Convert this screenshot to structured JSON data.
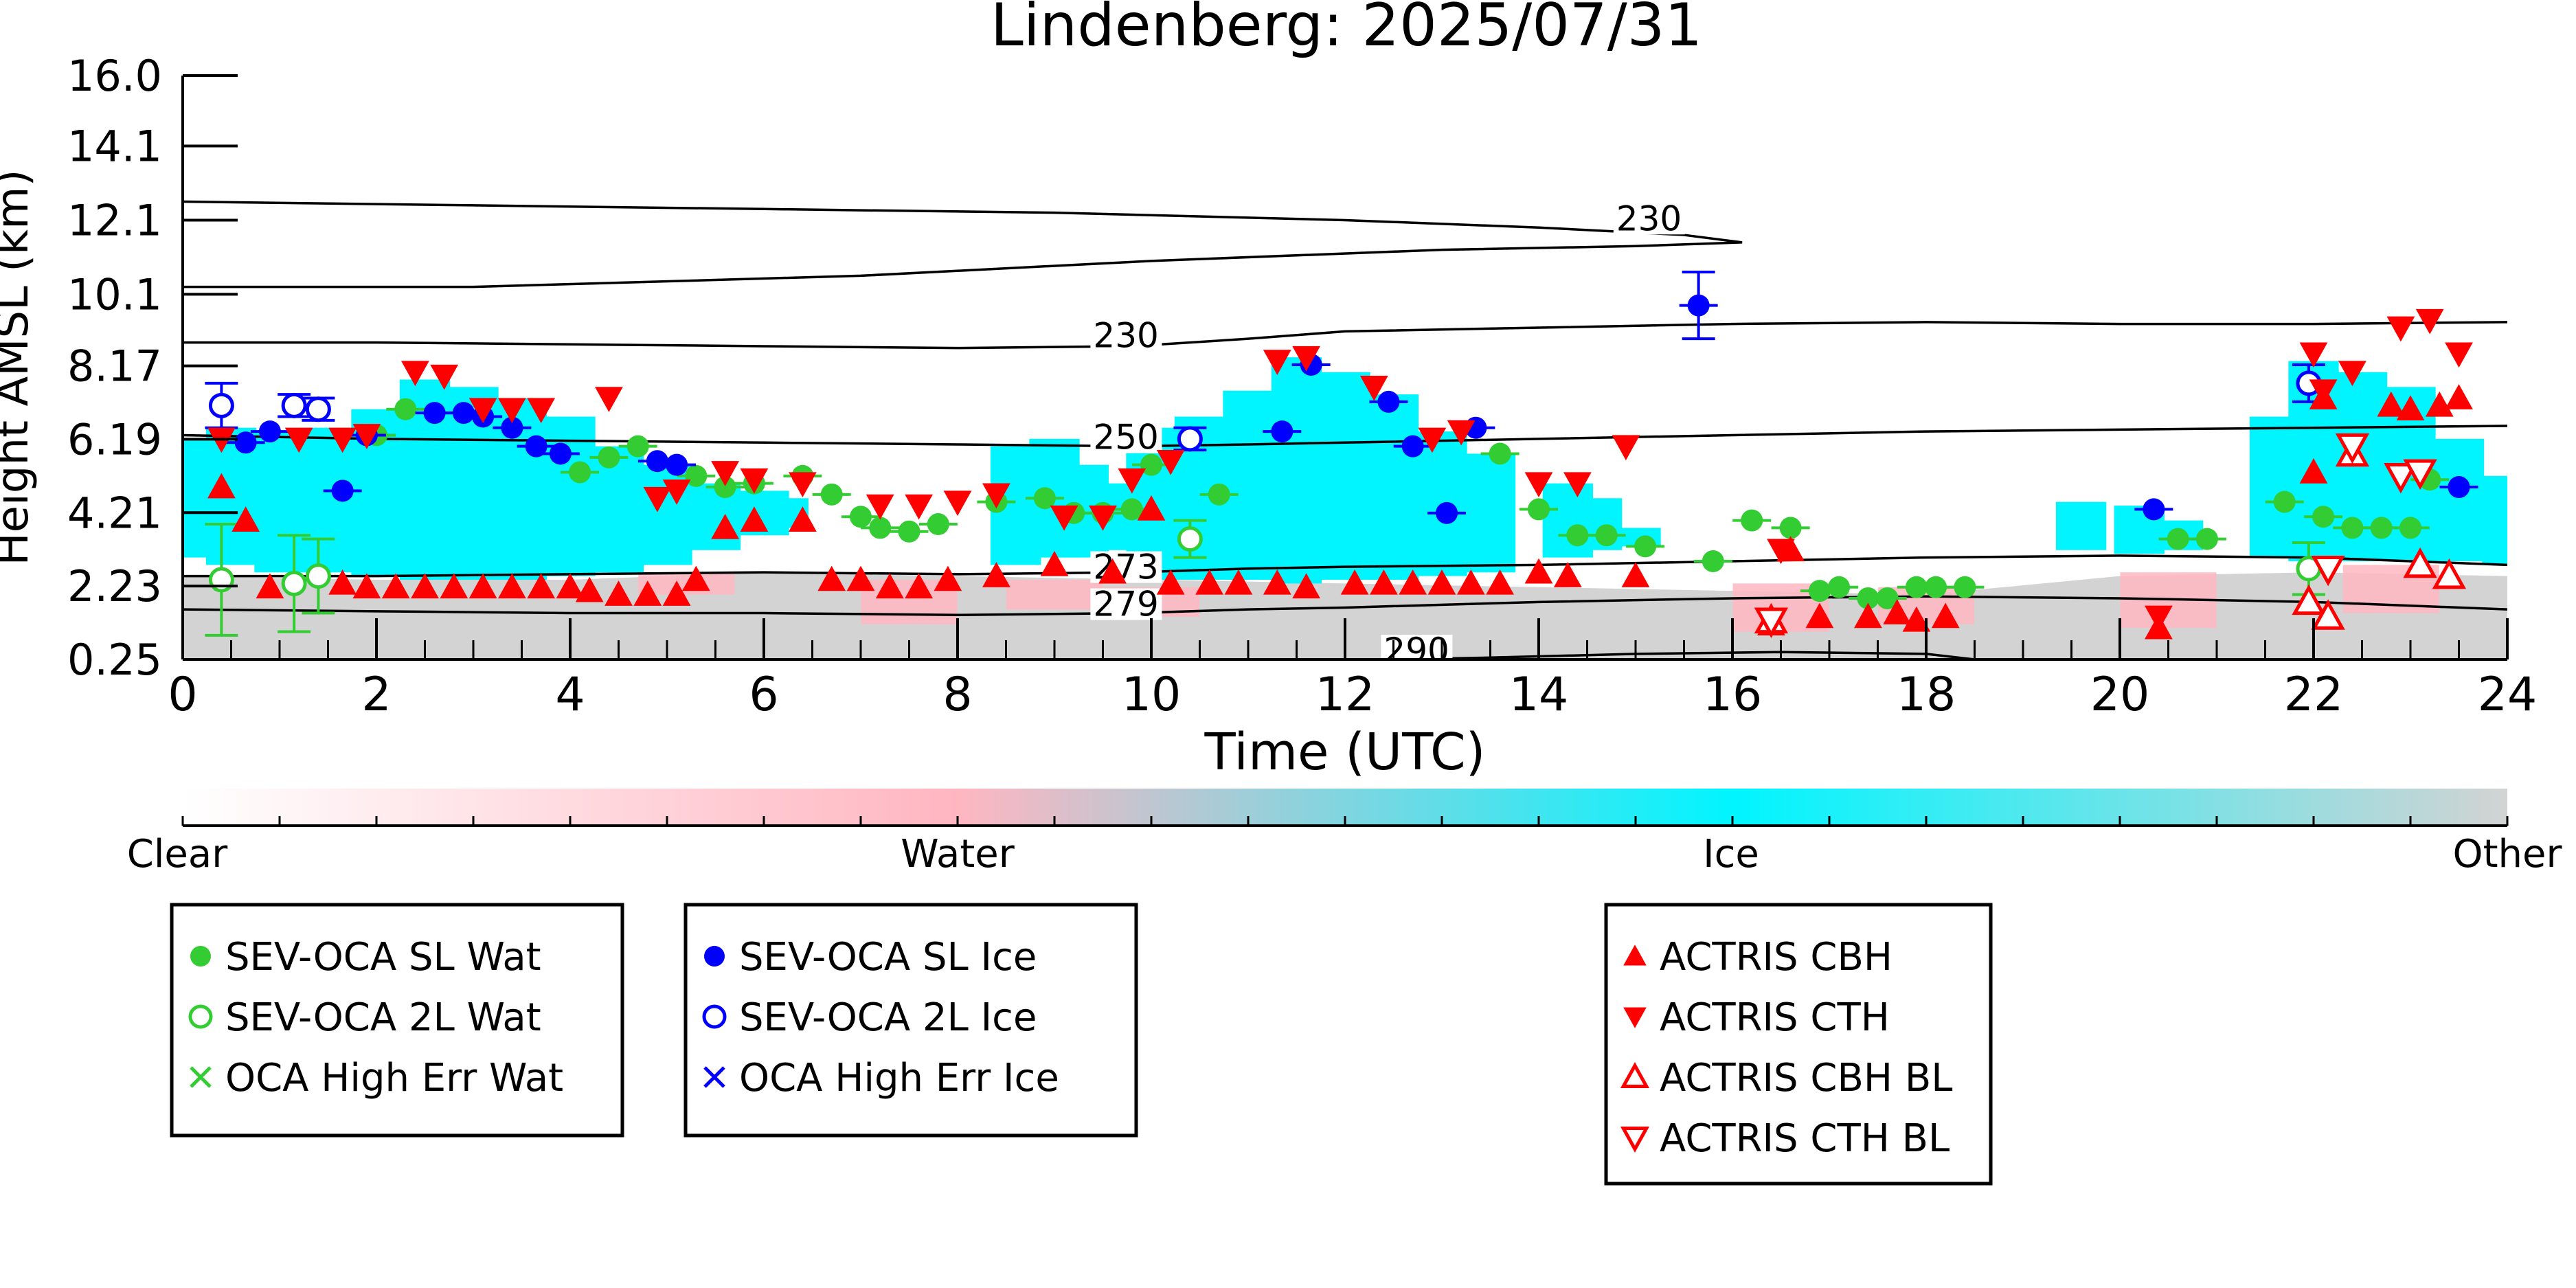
{
  "chart_data": {
    "type": "scatter",
    "title": "Lindenberg: 2025/07/31",
    "xlabel": "Time (UTC)",
    "ylabel": "Height AMSL (km)",
    "xlim": [
      0,
      24
    ],
    "ylim": [
      0.25,
      16.0
    ],
    "x_ticks": [
      "0",
      "2",
      "4",
      "6",
      "8",
      "10",
      "12",
      "14",
      "16",
      "18",
      "20",
      "22",
      "24"
    ],
    "y_ticks": [
      "0.25",
      "2.23",
      "4.21",
      "6.19",
      "8.17",
      "10.1",
      "12.1",
      "14.1",
      "16.0"
    ],
    "y_tick_values": [
      0.25,
      2.23,
      4.21,
      6.19,
      8.17,
      10.1,
      12.1,
      14.1,
      16.0
    ],
    "colors": {
      "water_green": "#33cc33",
      "ice_blue": "#0000ff",
      "actris_red": "#ff0000",
      "clear": "#ffffff",
      "water_pink": "#ffb6c1",
      "ice_cyan": "#00f5ff",
      "other_grey": "#d3d3d3"
    },
    "colorbar": {
      "labels": [
        "Clear",
        "Water",
        "Ice",
        "Other"
      ]
    },
    "contours": [
      {
        "label": "230",
        "label_x": 14.8,
        "label_y": 11.9,
        "points": [
          [
            0,
            12.6
          ],
          [
            3,
            12.5
          ],
          [
            6,
            12.4
          ],
          [
            9,
            12.3
          ],
          [
            12,
            12.1
          ],
          [
            14,
            11.9
          ],
          [
            15.5,
            11.7
          ],
          [
            16.1,
            11.5
          ],
          [
            15,
            11.4
          ],
          [
            13,
            11.3
          ],
          [
            10,
            11.0
          ],
          [
            7,
            10.6
          ],
          [
            3,
            10.3
          ],
          [
            0,
            10.3
          ]
        ]
      },
      {
        "label": "230",
        "label_x": 9.4,
        "label_y": 8.75,
        "points": [
          [
            0,
            8.8
          ],
          [
            2,
            8.8
          ],
          [
            4,
            8.75
          ],
          [
            6,
            8.7
          ],
          [
            8,
            8.65
          ],
          [
            9.8,
            8.7
          ],
          [
            11,
            8.9
          ],
          [
            12,
            9.1
          ],
          [
            14,
            9.2
          ],
          [
            16,
            9.3
          ],
          [
            18,
            9.35
          ],
          [
            20,
            9.3
          ],
          [
            22,
            9.3
          ],
          [
            24,
            9.35
          ]
        ]
      },
      {
        "label": "250",
        "label_x": 9.4,
        "label_y": 6.0,
        "points": [
          [
            0,
            6.3
          ],
          [
            2,
            6.2
          ],
          [
            4,
            6.15
          ],
          [
            6,
            6.1
          ],
          [
            8,
            6.05
          ],
          [
            9.8,
            6.0
          ],
          [
            11,
            6.05
          ],
          [
            12,
            6.1
          ],
          [
            14,
            6.2
          ],
          [
            16,
            6.3
          ],
          [
            18,
            6.4
          ],
          [
            20,
            6.45
          ],
          [
            22,
            6.5
          ],
          [
            24,
            6.55
          ]
        ]
      },
      {
        "label": "273",
        "label_x": 9.4,
        "label_y": 2.5,
        "points": [
          [
            0,
            2.5
          ],
          [
            2,
            2.5
          ],
          [
            4,
            2.55
          ],
          [
            6,
            2.6
          ],
          [
            8,
            2.55
          ],
          [
            9.8,
            2.6
          ],
          [
            11,
            2.7
          ],
          [
            12,
            2.75
          ],
          [
            14,
            2.8
          ],
          [
            16,
            2.9
          ],
          [
            18,
            3.0
          ],
          [
            20,
            3.05
          ],
          [
            22,
            3.0
          ],
          [
            24,
            2.8
          ]
        ]
      },
      {
        "label": "279",
        "label_x": 9.4,
        "label_y": 1.5,
        "points": [
          [
            0,
            1.6
          ],
          [
            2,
            1.55
          ],
          [
            4,
            1.5
          ],
          [
            6,
            1.5
          ],
          [
            8,
            1.45
          ],
          [
            9.8,
            1.5
          ],
          [
            11,
            1.6
          ],
          [
            12,
            1.65
          ],
          [
            14,
            1.8
          ],
          [
            16,
            1.9
          ],
          [
            18,
            1.95
          ],
          [
            20,
            1.9
          ],
          [
            22,
            1.8
          ],
          [
            24,
            1.6
          ]
        ]
      },
      {
        "label": "290",
        "label_x": 12.4,
        "label_y": 0.25,
        "points": [
          [
            12.5,
            0.25
          ],
          [
            13.5,
            0.3
          ],
          [
            15,
            0.4
          ],
          [
            16.5,
            0.45
          ],
          [
            18,
            0.4
          ],
          [
            18.5,
            0.25
          ]
        ]
      }
    ],
    "cloud_cyan": [
      [
        0,
        3.0,
        6.2
      ],
      [
        0.5,
        2.8,
        6.5
      ],
      [
        1.0,
        2.6,
        6.4
      ],
      [
        1.5,
        2.6,
        6.5
      ],
      [
        2.0,
        2.5,
        7.0
      ],
      [
        2.5,
        2.4,
        7.8
      ],
      [
        3.0,
        2.4,
        7.6
      ],
      [
        3.5,
        2.4,
        7.3
      ],
      [
        4.0,
        2.5,
        6.8
      ],
      [
        4.5,
        2.6,
        6.0
      ],
      [
        5.0,
        2.8,
        5.5
      ],
      [
        5.5,
        3.2,
        5.0
      ],
      [
        6.0,
        3.6,
        4.8
      ],
      [
        6.2,
        3.8,
        4.6
      ],
      [
        8.6,
        2.8,
        6.0
      ],
      [
        9.0,
        3.0,
        6.2
      ],
      [
        9.3,
        3.0,
        5.5
      ],
      [
        9.6,
        3.2,
        5.0
      ],
      [
        10.0,
        2.4,
        6.5
      ],
      [
        10.5,
        2.4,
        6.8
      ],
      [
        11.0,
        2.4,
        7.5
      ],
      [
        11.5,
        2.3,
        8.4
      ],
      [
        12.0,
        2.4,
        8.0
      ],
      [
        12.5,
        2.4,
        7.4
      ],
      [
        13.0,
        2.5,
        6.4
      ],
      [
        13.5,
        2.6,
        5.8
      ],
      [
        14.3,
        3.0,
        5.0
      ],
      [
        14.6,
        3.2,
        4.6
      ],
      [
        15.0,
        3.3,
        3.8
      ],
      [
        19.6,
        3.2,
        4.5
      ],
      [
        20.2,
        3.1,
        4.4
      ],
      [
        20.6,
        3.2,
        4.0
      ],
      [
        21.6,
        3.0,
        6.8
      ],
      [
        22.0,
        2.9,
        8.3
      ],
      [
        22.5,
        2.9,
        8.0
      ],
      [
        23.0,
        2.9,
        7.6
      ],
      [
        23.5,
        2.9,
        6.2
      ],
      [
        24.0,
        2.8,
        5.2
      ]
    ],
    "cloud_grey_top": [
      [
        0,
        2.5
      ],
      [
        2,
        2.4
      ],
      [
        4,
        2.4
      ],
      [
        6,
        2.6
      ],
      [
        8,
        2.5
      ],
      [
        10,
        2.4
      ],
      [
        12,
        2.3
      ],
      [
        14,
        2.2
      ],
      [
        16,
        2.1
      ],
      [
        18,
        2.0
      ],
      [
        20,
        2.5
      ],
      [
        22,
        2.6
      ],
      [
        24,
        2.5
      ]
    ],
    "cloud_pink": [
      [
        5.2,
        2.0,
        2.6
      ],
      [
        7.5,
        1.2,
        2.4
      ],
      [
        9.0,
        1.6,
        2.4
      ],
      [
        10.0,
        1.4,
        2.2
      ],
      [
        16.5,
        1.0,
        2.3
      ],
      [
        18.0,
        1.2,
        2.2
      ],
      [
        20.5,
        1.1,
        2.6
      ],
      [
        22.8,
        1.5,
        2.8
      ]
    ],
    "series": [
      {
        "name": "SEV-OCA SL Wat",
        "marker": "filled-circle",
        "color": "#33cc33",
        "x": [
          2.0,
          2.3,
          4.1,
          4.4,
          4.7,
          5.3,
          5.6,
          5.9,
          6.4,
          6.7,
          7.0,
          7.2,
          7.5,
          7.8,
          8.4,
          8.9,
          9.2,
          9.5,
          9.8,
          10.0,
          10.7,
          13.6,
          14.0,
          14.4,
          14.7,
          15.1,
          15.8,
          16.2,
          16.6,
          16.9,
          17.1,
          17.4,
          17.6,
          17.9,
          18.1,
          18.4,
          20.6,
          20.9,
          21.7,
          22.1,
          22.4,
          22.7,
          23.0,
          23.2
        ],
        "y": [
          6.3,
          7.0,
          5.3,
          5.7,
          6.0,
          5.2,
          4.9,
          5.0,
          5.2,
          4.7,
          4.1,
          3.8,
          3.7,
          3.9,
          4.5,
          4.6,
          4.2,
          4.2,
          4.3,
          5.5,
          4.7,
          5.8,
          4.3,
          3.6,
          3.6,
          3.3,
          2.9,
          4.0,
          3.8,
          2.1,
          2.2,
          1.9,
          1.9,
          2.2,
          2.2,
          2.2,
          3.5,
          3.5,
          4.5,
          4.1,
          3.8,
          3.8,
          3.8,
          5.1
        ]
      },
      {
        "name": "SEV-OCA 2L Wat",
        "marker": "open-circle",
        "color": "#33cc33",
        "x": [
          0.4,
          1.15,
          1.4,
          10.4,
          21.95
        ],
        "y": [
          2.4,
          2.3,
          2.5,
          3.5,
          2.7
        ],
        "err": [
          1.5,
          1.3,
          1.0,
          0.5,
          0.7
        ]
      },
      {
        "name": "OCA High Err Wat",
        "marker": "x",
        "color": "#33cc33",
        "x": [],
        "y": []
      },
      {
        "name": "SEV-OCA SL Ice",
        "marker": "filled-circle",
        "color": "#0000ff",
        "x": [
          0.65,
          0.9,
          1.65,
          1.9,
          2.6,
          2.9,
          3.1,
          3.4,
          3.65,
          3.9,
          4.9,
          5.1,
          11.35,
          11.65,
          12.45,
          12.7,
          13.05,
          13.35,
          15.65,
          20.35,
          23.5
        ],
        "y": [
          6.1,
          6.4,
          4.8,
          6.3,
          6.9,
          6.9,
          6.8,
          6.5,
          6.0,
          5.8,
          5.6,
          5.5,
          6.4,
          8.2,
          7.2,
          6.0,
          4.2,
          6.5,
          9.8,
          4.3,
          4.9
        ],
        "err": [
          0,
          0,
          0,
          0,
          0,
          0,
          0,
          0,
          0,
          0,
          0,
          0,
          0,
          0,
          0,
          0,
          0,
          0,
          0.9,
          0,
          0
        ]
      },
      {
        "name": "SEV-OCA 2L Ice",
        "marker": "open-circle",
        "color": "#0000ff",
        "x": [
          0.4,
          1.15,
          1.4,
          10.4,
          21.95
        ],
        "y": [
          7.1,
          7.1,
          7.0,
          6.2,
          7.7
        ],
        "err": [
          0.6,
          0.3,
          0.3,
          0.3,
          0.5
        ]
      },
      {
        "name": "OCA High Err Ice",
        "marker": "x",
        "color": "#0000ff",
        "x": [],
        "y": []
      },
      {
        "name": "ACTRIS CBH",
        "marker": "filled-triangle-up",
        "color": "#ff0000",
        "x": [
          0.4,
          0.65,
          0.9,
          1.65,
          1.9,
          2.2,
          2.5,
          2.8,
          3.1,
          3.4,
          3.7,
          4.0,
          4.2,
          4.5,
          4.8,
          5.1,
          5.3,
          5.6,
          5.9,
          6.4,
          6.7,
          7.0,
          7.3,
          7.6,
          7.9,
          8.4,
          9.0,
          9.6,
          10.0,
          10.2,
          10.6,
          10.9,
          11.3,
          11.6,
          12.1,
          12.4,
          12.7,
          13.0,
          13.3,
          13.6,
          14.0,
          14.3,
          15.0,
          16.4,
          16.6,
          16.9,
          17.4,
          17.7,
          17.9,
          18.2,
          20.4,
          22.0,
          22.1,
          22.8,
          23.0,
          23.3,
          23.5
        ],
        "y": [
          4.9,
          4.0,
          2.2,
          2.3,
          2.2,
          2.2,
          2.2,
          2.2,
          2.2,
          2.2,
          2.2,
          2.2,
          2.1,
          2.0,
          2.0,
          2.0,
          2.4,
          3.8,
          4.0,
          4.0,
          2.4,
          2.4,
          2.2,
          2.2,
          2.4,
          2.5,
          2.8,
          2.6,
          4.3,
          2.3,
          2.3,
          2.3,
          2.3,
          2.2,
          2.3,
          2.3,
          2.3,
          2.3,
          2.3,
          2.3,
          2.6,
          2.5,
          2.5,
          1.2,
          3.2,
          1.4,
          1.4,
          1.5,
          1.3,
          1.4,
          1.1,
          5.3,
          7.3,
          7.1,
          7.0,
          7.1,
          7.3
        ]
      },
      {
        "name": "ACTRIS CTH",
        "marker": "filled-triangle-down",
        "color": "#ff0000",
        "x": [
          0.4,
          1.2,
          1.65,
          1.9,
          2.4,
          2.7,
          3.1,
          3.4,
          3.7,
          4.4,
          4.9,
          5.1,
          5.6,
          5.9,
          6.4,
          7.2,
          7.6,
          8.0,
          8.4,
          9.1,
          9.5,
          9.8,
          10.2,
          11.3,
          11.6,
          12.3,
          12.9,
          13.2,
          14.0,
          14.4,
          14.9,
          16.5,
          20.4,
          22.0,
          22.1,
          22.4,
          22.9,
          23.2,
          23.5
        ],
        "y": [
          6.2,
          6.2,
          6.2,
          6.3,
          8.0,
          7.9,
          7.0,
          7.0,
          7.0,
          7.3,
          4.6,
          4.8,
          5.3,
          5.1,
          5.0,
          4.4,
          4.4,
          4.5,
          4.7,
          4.1,
          4.1,
          5.1,
          5.6,
          8.3,
          8.4,
          7.6,
          6.2,
          6.4,
          5.0,
          5.0,
          6.0,
          3.2,
          1.4,
          8.5,
          7.5,
          8.0,
          9.2,
          9.4,
          8.5
        ]
      },
      {
        "name": "ACTRIS CBH BL",
        "marker": "open-triangle-up",
        "color": "#ff0000",
        "x": [
          16.4,
          21.95,
          22.15,
          22.4,
          23.1,
          23.4
        ],
        "y": [
          1.3,
          1.8,
          1.4,
          5.8,
          2.8,
          2.5
        ]
      },
      {
        "name": "ACTRIS CTH BL",
        "marker": "open-triangle-down",
        "color": "#ff0000",
        "x": [
          16.4,
          22.15,
          22.4,
          22.9,
          23.1
        ],
        "y": [
          1.3,
          2.7,
          6.0,
          5.2,
          5.3
        ]
      }
    ],
    "legend_groups": [
      [
        "SEV-OCA SL Wat",
        "SEV-OCA 2L Wat",
        "OCA High Err Wat"
      ],
      [
        "SEV-OCA SL Ice",
        "SEV-OCA 2L Ice",
        "OCA High Err Ice"
      ],
      [
        "ACTRIS CBH",
        "ACTRIS CTH",
        "ACTRIS CBH BL",
        "ACTRIS CTH BL"
      ]
    ]
  }
}
